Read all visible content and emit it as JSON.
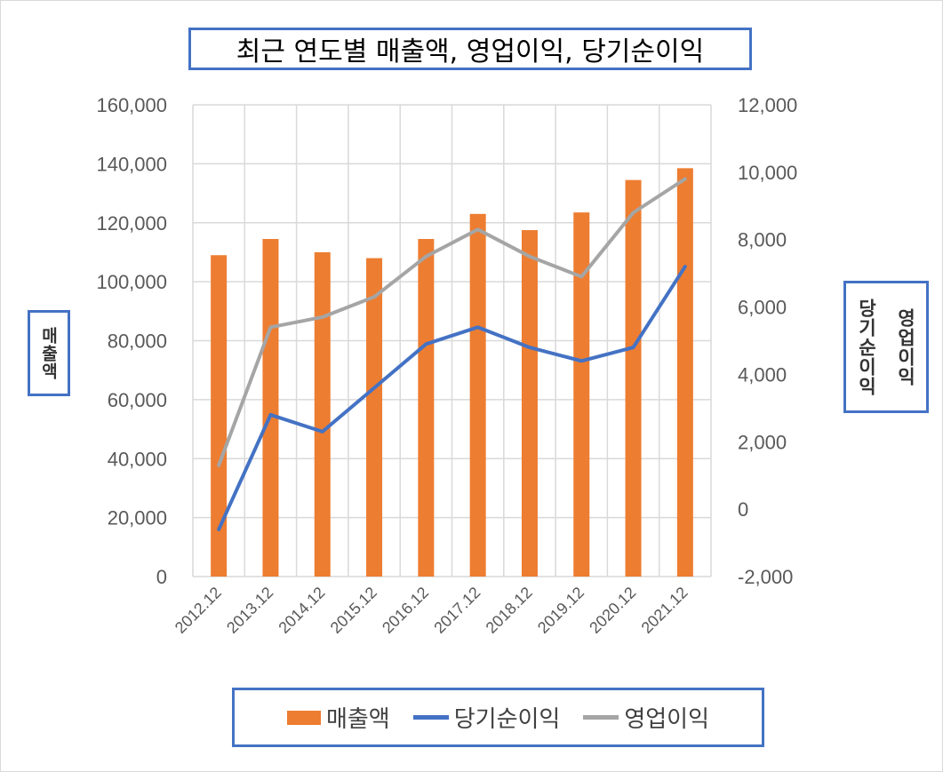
{
  "chart_data": {
    "type": "bar-line-combo",
    "title": "최근 연도별 매출액, 영업이익, 당기순이익",
    "categories": [
      "2012.12",
      "2013.12",
      "2014.12",
      "2015.12",
      "2016.12",
      "2017.12",
      "2018.12",
      "2019.12",
      "2020.12",
      "2021.12"
    ],
    "series": [
      {
        "name": "매출액",
        "type": "bar",
        "axis": "left",
        "color": "#ed7d31",
        "values": [
          109000,
          114500,
          110000,
          108000,
          114500,
          123000,
          117500,
          123500,
          134500,
          138500
        ]
      },
      {
        "name": "당기순이익",
        "type": "line",
        "axis": "right",
        "color": "#4472c4",
        "values": [
          -600,
          2800,
          2300,
          3600,
          4900,
          5400,
          4800,
          4400,
          4800,
          7200
        ]
      },
      {
        "name": "영업이익",
        "type": "line",
        "axis": "right",
        "color": "#a5a5a5",
        "values": [
          1300,
          5400,
          5700,
          6300,
          7500,
          8300,
          7500,
          6900,
          8800,
          9800
        ]
      }
    ],
    "ylabel": "매출액",
    "y2label_left": "당기순이익",
    "y2label_right": "영업이익",
    "ylim": [
      0,
      160000
    ],
    "y2lim": [
      -2000,
      12000
    ],
    "yticks": [
      "160,000",
      "140,000",
      "120,000",
      "100,000",
      "80,000",
      "60,000",
      "40,000",
      "20,000",
      "0"
    ],
    "y2ticks": [
      "12,000",
      "10,000",
      "8,000",
      "6,000",
      "4,000",
      "2,000",
      "0",
      "-2,000"
    ],
    "negative_tick_color": "#ff0000",
    "grid": true,
    "legend_position": "bottom"
  }
}
